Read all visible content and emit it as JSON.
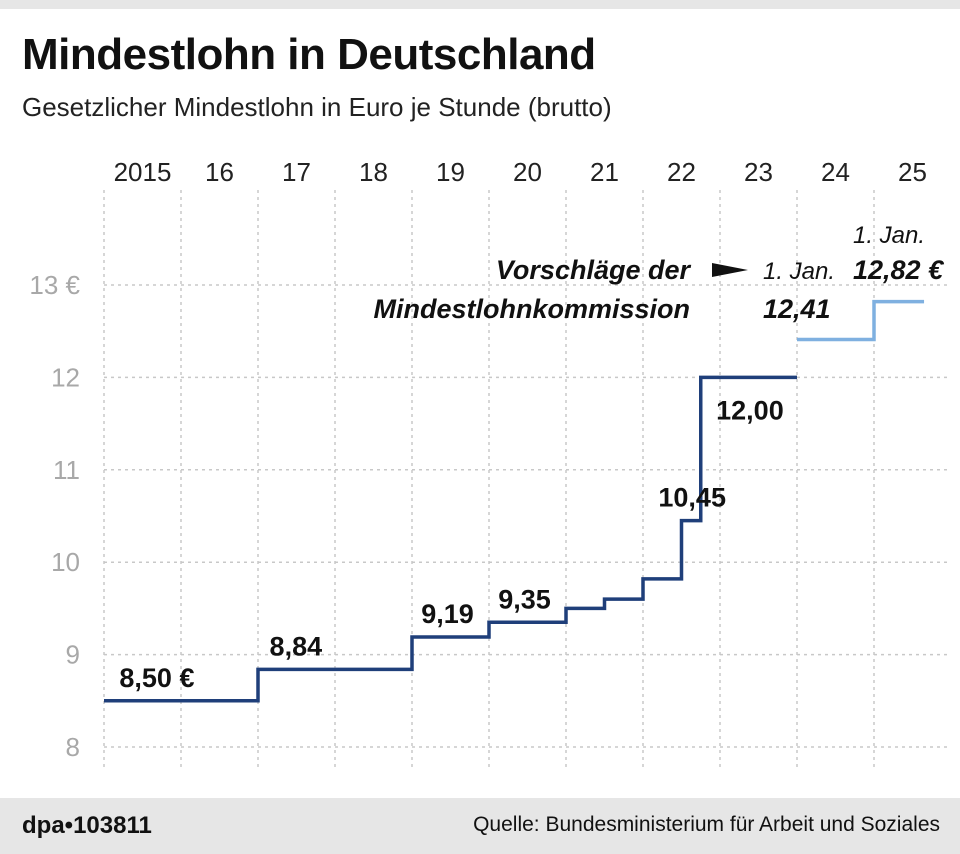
{
  "header": {
    "title": "Mindestlohn in Deutschland",
    "subtitle": "Gesetzlicher Mindestlohn in Euro je Stunde (brutto)"
  },
  "chart_data": {
    "type": "line",
    "step": true,
    "title": "Mindestlohn in Deutschland",
    "subtitle": "Gesetzlicher Mindestlohn in Euro je Stunde (brutto)",
    "x_tick_labels": [
      "2015",
      "16",
      "17",
      "18",
      "19",
      "20",
      "21",
      "22",
      "23",
      "24",
      "25"
    ],
    "y_ticks": [
      8,
      9,
      10,
      11,
      12,
      13
    ],
    "y_tick_labels": [
      "8",
      "9",
      "10",
      "11",
      "12",
      "13 €"
    ],
    "ylim": [
      7.9,
      13.3
    ],
    "xlim": [
      2015,
      2025.7
    ],
    "grid": true,
    "series": [
      {
        "name": "Mindestlohn",
        "color": "#1f3f7a",
        "points": [
          {
            "x": 2015.0,
            "y": 8.5
          },
          {
            "x": 2017.0,
            "y": 8.84
          },
          {
            "x": 2019.0,
            "y": 9.19
          },
          {
            "x": 2020.0,
            "y": 9.35
          },
          {
            "x": 2021.0,
            "y": 9.5
          },
          {
            "x": 2021.5,
            "y": 9.6
          },
          {
            "x": 2022.0,
            "y": 9.82
          },
          {
            "x": 2022.5,
            "y": 10.45
          },
          {
            "x": 2022.75,
            "y": 12.0
          }
        ],
        "end_x": 2024.0
      },
      {
        "name": "Vorschläge der Mindestlohnkommission",
        "color": "#7fb0e0",
        "points": [
          {
            "x": 2024.0,
            "y": 12.41
          },
          {
            "x": 2025.0,
            "y": 12.82
          }
        ],
        "end_x": 2025.65
      }
    ],
    "value_labels": [
      {
        "x": 2015.2,
        "y": 8.5,
        "text": "8,50 €",
        "pos": "above"
      },
      {
        "x": 2017.15,
        "y": 8.84,
        "text": "8,84",
        "pos": "above"
      },
      {
        "x": 2019.12,
        "y": 9.19,
        "text": "9,19",
        "pos": "above"
      },
      {
        "x": 2020.12,
        "y": 9.35,
        "text": "9,35",
        "pos": "above"
      },
      {
        "x": 2022.2,
        "y": 10.45,
        "text": "10,45",
        "pos": "above"
      },
      {
        "x": 2022.95,
        "y": 12.0,
        "text": "12,00",
        "pos": "below"
      }
    ],
    "annotations": {
      "proposal_line1": "Vorschläge der",
      "proposal_line2": "Mindestlohnkommission",
      "date_2024": "1. Jan.",
      "value_2024": "12,41",
      "date_2025": "1. Jan.",
      "value_2025": "12,82 €"
    }
  },
  "footer": {
    "id": "dpa•103811",
    "source": "Quelle: Bundesministerium für Arbeit und Soziales"
  },
  "colors": {
    "actual": "#1f3f7a",
    "proposal": "#7fb0e0",
    "grid": "#c8c8c8",
    "y_tick": "#a8a8a8",
    "footer_bg": "#e6e6e6"
  }
}
